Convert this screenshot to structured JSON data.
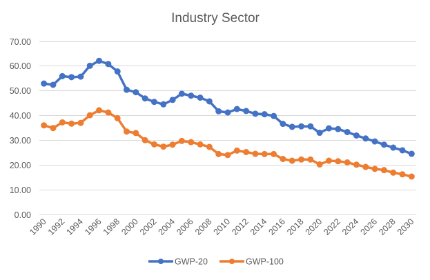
{
  "chart_data": {
    "type": "line",
    "title": "Industry Sector",
    "xlabel": "",
    "ylabel": "",
    "ylim": [
      0,
      70
    ],
    "yticks": [
      "0.00",
      "10.00",
      "20.00",
      "30.00",
      "40.00",
      "50.00",
      "60.00",
      "70.00"
    ],
    "ytick_values": [
      0,
      10,
      20,
      30,
      40,
      50,
      60,
      70
    ],
    "grid": true,
    "legend_position": "bottom",
    "x": [
      1990,
      1991,
      1992,
      1993,
      1994,
      1995,
      1996,
      1997,
      1998,
      1999,
      2000,
      2001,
      2002,
      2003,
      2004,
      2005,
      2006,
      2007,
      2008,
      2009,
      2010,
      2011,
      2012,
      2013,
      2014,
      2015,
      2016,
      2017,
      2018,
      2019,
      2020,
      2021,
      2022,
      2023,
      2024,
      2025,
      2026,
      2027,
      2028,
      2029,
      2030
    ],
    "xtick_labels": [
      "1990",
      "1992",
      "1994",
      "1996",
      "1998",
      "2000",
      "2002",
      "2004",
      "2006",
      "2008",
      "2010",
      "2012",
      "2014",
      "2016",
      "2018",
      "2020",
      "2022",
      "2024",
      "2026",
      "2028",
      "2030"
    ],
    "series": [
      {
        "name": "GWP-20",
        "color": "#4472c4",
        "values": [
          52.8,
          52.3,
          55.8,
          55.4,
          55.6,
          60.0,
          62.0,
          60.7,
          57.7,
          50.3,
          49.3,
          46.8,
          45.4,
          44.4,
          46.2,
          48.7,
          47.9,
          47.1,
          45.6,
          41.6,
          41.1,
          42.5,
          41.7,
          40.6,
          40.4,
          39.7,
          36.5,
          35.3,
          35.5,
          35.5,
          32.9,
          34.7,
          34.4,
          33.2,
          31.8,
          30.6,
          29.4,
          28.1,
          26.9,
          25.8,
          24.4
        ]
      },
      {
        "name": "GWP-100",
        "color": "#ed7d31",
        "values": [
          35.9,
          34.8,
          37.1,
          36.6,
          36.9,
          40.0,
          42.0,
          41.1,
          38.8,
          33.4,
          32.8,
          29.9,
          28.2,
          27.3,
          28.1,
          29.6,
          29.1,
          28.2,
          27.2,
          24.3,
          23.9,
          25.7,
          25.1,
          24.4,
          24.3,
          24.3,
          22.3,
          21.6,
          22.1,
          22.1,
          20.1,
          21.6,
          21.4,
          20.9,
          20.0,
          19.1,
          18.3,
          17.8,
          16.8,
          16.1,
          15.2
        ]
      }
    ]
  }
}
